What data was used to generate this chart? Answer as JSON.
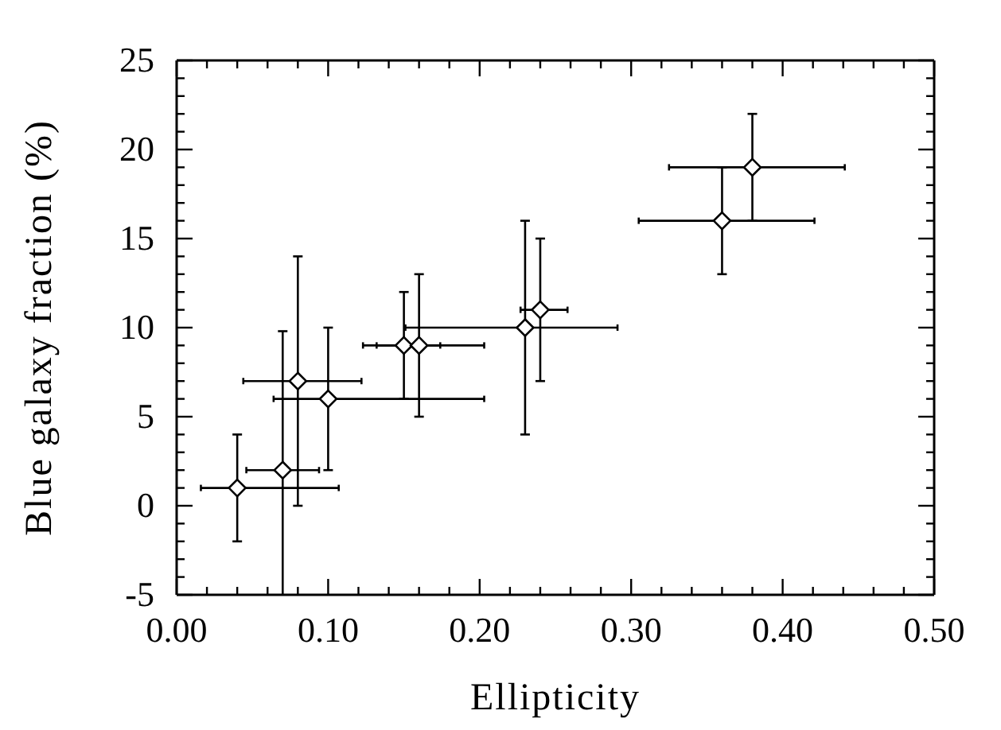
{
  "chart_data": {
    "type": "scatter",
    "xlabel": "Ellipticity",
    "ylabel": "Blue galaxy fraction (%)",
    "marker": "diamond",
    "xlim": [
      0,
      0.5
    ],
    "ylim": [
      -5,
      25
    ],
    "xticks": [
      {
        "value": 0,
        "label": "0.00"
      },
      {
        "value": 0.02,
        "label": null
      },
      {
        "value": 0.04,
        "label": null
      },
      {
        "value": 0.06,
        "label": null
      },
      {
        "value": 0.08,
        "label": null
      },
      {
        "value": 0.1,
        "label": "0.10"
      },
      {
        "value": 0.12,
        "label": null
      },
      {
        "value": 0.14,
        "label": null
      },
      {
        "value": 0.16,
        "label": null
      },
      {
        "value": 0.18,
        "label": null
      },
      {
        "value": 0.2,
        "label": "0.20"
      },
      {
        "value": 0.22,
        "label": null
      },
      {
        "value": 0.24,
        "label": null
      },
      {
        "value": 0.26,
        "label": null
      },
      {
        "value": 0.28,
        "label": null
      },
      {
        "value": 0.3,
        "label": "0.30"
      },
      {
        "value": 0.32,
        "label": null
      },
      {
        "value": 0.34,
        "label": null
      },
      {
        "value": 0.36,
        "label": null
      },
      {
        "value": 0.38,
        "label": null
      },
      {
        "value": 0.4,
        "label": "0.40"
      },
      {
        "value": 0.42,
        "label": null
      },
      {
        "value": 0.44,
        "label": null
      },
      {
        "value": 0.46,
        "label": null
      },
      {
        "value": 0.48,
        "label": null
      },
      {
        "value": 0.5,
        "label": "0.50"
      }
    ],
    "yticks": [
      -5,
      {
        "value": -4,
        "label": null
      },
      {
        "value": -3,
        "label": null
      },
      {
        "value": -2,
        "label": null
      },
      {
        "value": -1,
        "label": null
      },
      0,
      {
        "value": 1,
        "label": null
      },
      {
        "value": 2,
        "label": null
      },
      {
        "value": 3,
        "label": null
      },
      {
        "value": 4,
        "label": null
      },
      5,
      {
        "value": 6,
        "label": null
      },
      {
        "value": 7,
        "label": null
      },
      {
        "value": 8,
        "label": null
      },
      {
        "value": 9,
        "label": null
      },
      10,
      {
        "value": 11,
        "label": null
      },
      {
        "value": 12,
        "label": null
      },
      {
        "value": 13,
        "label": null
      },
      {
        "value": 14,
        "label": null
      },
      15,
      {
        "value": 16,
        "label": null
      },
      {
        "value": 17,
        "label": null
      },
      {
        "value": 18,
        "label": null
      },
      {
        "value": 19,
        "label": null
      },
      20,
      {
        "value": 21,
        "label": null
      },
      {
        "value": 22,
        "label": null
      },
      {
        "value": 23,
        "label": null
      },
      {
        "value": 24,
        "label": null
      },
      25
    ],
    "series": [
      {
        "color": "#000000",
        "x": [
          0.04,
          0.07,
          0.08,
          0.1,
          0.15,
          0.16,
          0.23,
          0.24,
          0.36,
          0.38
        ],
        "values": [
          1,
          2,
          7,
          6,
          9,
          9,
          10,
          11,
          16,
          19
        ],
        "errors": [
          [
            -2,
            4
          ],
          [
            -5,
            9.8
          ],
          [
            0,
            14
          ],
          [
            2,
            10
          ],
          [
            6,
            12
          ],
          [
            5,
            13
          ],
          [
            4,
            16
          ],
          [
            7,
            15
          ],
          [
            13,
            19
          ],
          [
            16,
            22
          ]
        ],
        "xerrors": [
          [
            0.016,
            0.107
          ],
          [
            0.046,
            0.094
          ],
          [
            0.044,
            0.122
          ],
          [
            0.064,
            0.203
          ],
          [
            0.123,
            0.174
          ],
          [
            0.132,
            0.203
          ],
          [
            0.151,
            0.291
          ],
          [
            0.227,
            0.258
          ],
          [
            0.305,
            0.421
          ],
          [
            0.325,
            0.441
          ]
        ]
      }
    ]
  }
}
